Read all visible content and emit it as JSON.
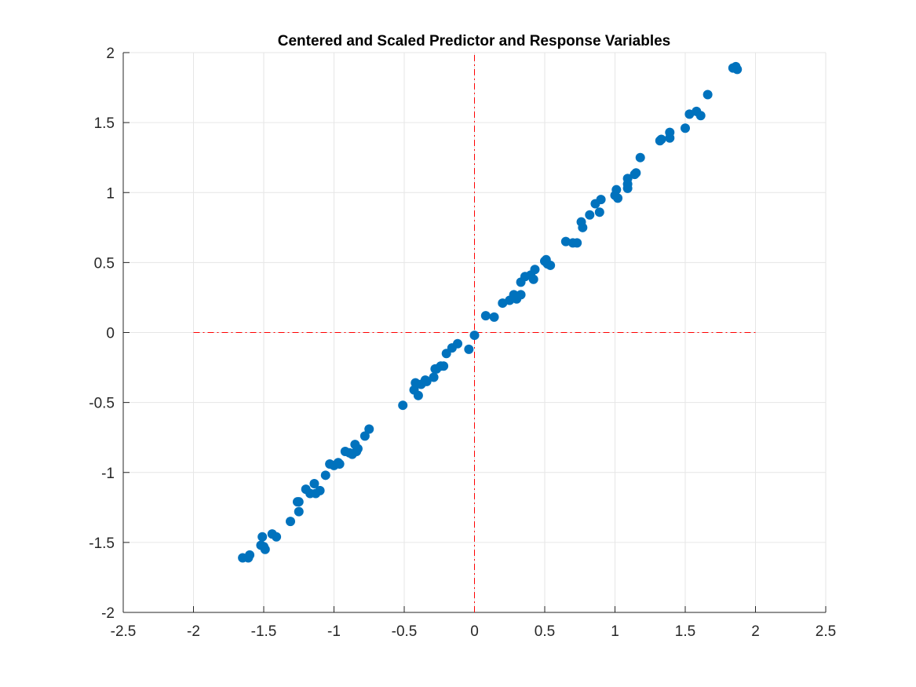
{
  "chart_data": {
    "type": "scatter",
    "title": "Centered and Scaled Predictor and Response Variables",
    "xlabel": "",
    "ylabel": "",
    "xlim": [
      -2.5,
      2.5
    ],
    "ylim": [
      -2,
      2
    ],
    "x_ticks": [
      "-2.5",
      "-2",
      "-1.5",
      "-1",
      "-0.5",
      "0",
      "0.5",
      "1",
      "1.5",
      "2",
      "2.5"
    ],
    "y_ticks": [
      "-2",
      "-1.5",
      "-1",
      "-0.5",
      "0",
      "0.5",
      "1",
      "1.5",
      "2"
    ],
    "grid": true,
    "marker_color": "#0072BD",
    "reference_line_color": "#FF0000",
    "reference_lines": [
      {
        "orientation": "horizontal",
        "y": 0,
        "x_range": [
          -2,
          2
        ],
        "style": "dash-dot"
      },
      {
        "orientation": "vertical",
        "x": 0,
        "y_range": [
          -2,
          2
        ],
        "style": "dash-dot"
      }
    ],
    "series": [
      {
        "points": [
          [
            -1.65,
            -1.61
          ],
          [
            -1.61,
            -1.61
          ],
          [
            -1.6,
            -1.59
          ],
          [
            -1.52,
            -1.52
          ],
          [
            -1.51,
            -1.46
          ],
          [
            -1.5,
            -1.53
          ],
          [
            -1.49,
            -1.55
          ],
          [
            -1.44,
            -1.44
          ],
          [
            -1.41,
            -1.46
          ],
          [
            -1.31,
            -1.35
          ],
          [
            -1.26,
            -1.21
          ],
          [
            -1.25,
            -1.21
          ],
          [
            -1.25,
            -1.28
          ],
          [
            -1.2,
            -1.12
          ],
          [
            -1.17,
            -1.15
          ],
          [
            -1.14,
            -1.08
          ],
          [
            -1.13,
            -1.15
          ],
          [
            -1.1,
            -1.13
          ],
          [
            -1.06,
            -1.02
          ],
          [
            -1.03,
            -0.94
          ],
          [
            -1.0,
            -0.95
          ],
          [
            -0.97,
            -0.93
          ],
          [
            -0.96,
            -0.94
          ],
          [
            -0.92,
            -0.85
          ],
          [
            -0.89,
            -0.86
          ],
          [
            -0.87,
            -0.87
          ],
          [
            -0.85,
            -0.8
          ],
          [
            -0.84,
            -0.85
          ],
          [
            -0.83,
            -0.83
          ],
          [
            -0.78,
            -0.74
          ],
          [
            -0.75,
            -0.69
          ],
          [
            -0.51,
            -0.52
          ],
          [
            -0.43,
            -0.41
          ],
          [
            -0.42,
            -0.36
          ],
          [
            -0.4,
            -0.45
          ],
          [
            -0.38,
            -0.37
          ],
          [
            -0.35,
            -0.34
          ],
          [
            -0.34,
            -0.35
          ],
          [
            -0.29,
            -0.32
          ],
          [
            -0.28,
            -0.26
          ],
          [
            -0.27,
            -0.26
          ],
          [
            -0.24,
            -0.24
          ],
          [
            -0.22,
            -0.24
          ],
          [
            -0.2,
            -0.15
          ],
          [
            -0.16,
            -0.11
          ],
          [
            -0.12,
            -0.08
          ],
          [
            -0.04,
            -0.12
          ],
          [
            0.0,
            -0.02
          ],
          [
            0.08,
            0.12
          ],
          [
            0.14,
            0.11
          ],
          [
            0.2,
            0.21
          ],
          [
            0.25,
            0.23
          ],
          [
            0.28,
            0.27
          ],
          [
            0.3,
            0.24
          ],
          [
            0.33,
            0.27
          ],
          [
            0.33,
            0.36
          ],
          [
            0.36,
            0.4
          ],
          [
            0.4,
            0.41
          ],
          [
            0.42,
            0.38
          ],
          [
            0.43,
            0.45
          ],
          [
            0.5,
            0.51
          ],
          [
            0.51,
            0.52
          ],
          [
            0.52,
            0.49
          ],
          [
            0.54,
            0.48
          ],
          [
            0.65,
            0.65
          ],
          [
            0.7,
            0.64
          ],
          [
            0.73,
            0.64
          ],
          [
            0.76,
            0.79
          ],
          [
            0.77,
            0.75
          ],
          [
            0.82,
            0.84
          ],
          [
            0.86,
            0.92
          ],
          [
            0.89,
            0.86
          ],
          [
            0.9,
            0.95
          ],
          [
            1.0,
            0.98
          ],
          [
            1.01,
            1.02
          ],
          [
            1.02,
            0.96
          ],
          [
            1.09,
            1.1
          ],
          [
            1.09,
            1.06
          ],
          [
            1.09,
            1.03
          ],
          [
            1.14,
            1.13
          ],
          [
            1.15,
            1.14
          ],
          [
            1.18,
            1.25
          ],
          [
            1.32,
            1.37
          ],
          [
            1.33,
            1.38
          ],
          [
            1.39,
            1.43
          ],
          [
            1.39,
            1.39
          ],
          [
            1.5,
            1.46
          ],
          [
            1.53,
            1.56
          ],
          [
            1.58,
            1.58
          ],
          [
            1.61,
            1.55
          ],
          [
            1.66,
            1.7
          ],
          [
            1.84,
            1.89
          ],
          [
            1.86,
            1.9
          ],
          [
            1.87,
            1.88
          ]
        ]
      }
    ]
  }
}
